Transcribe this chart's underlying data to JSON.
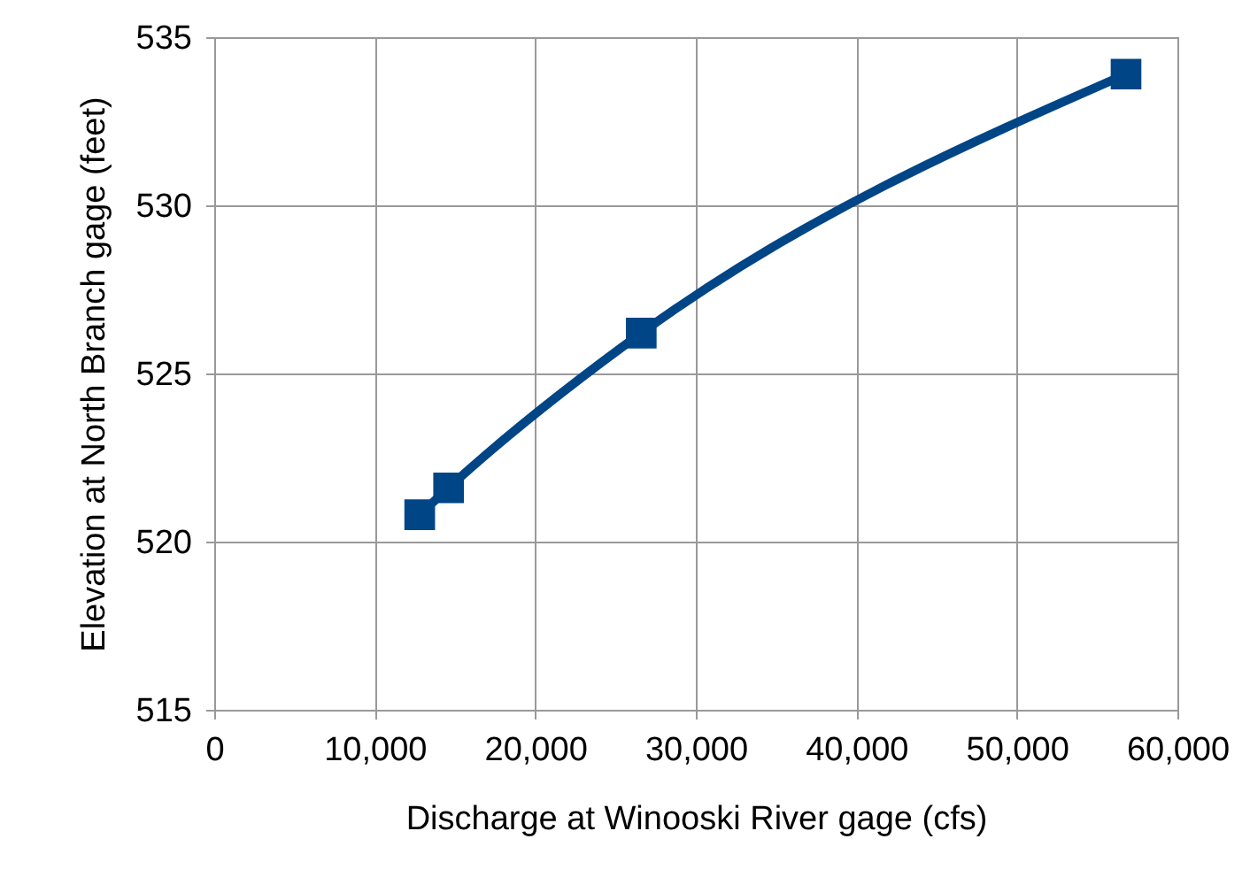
{
  "chart_data": {
    "type": "line",
    "xlabel": "Discharge at Winooski River gage (cfs)",
    "ylabel": "Elevation at North Branch gage (feet)",
    "x": [
      12800,
      14600,
      26600,
      56800
    ],
    "series": [
      {
        "color": "#004586",
        "values": [
          520.8,
          521.6,
          526.2,
          533.9
        ]
      }
    ],
    "xlim": [
      0,
      60000
    ],
    "xticks": [
      0,
      {
        "value": 10000,
        "label": "10,000"
      },
      {
        "value": 20000,
        "label": "20,000"
      },
      {
        "value": 30000,
        "label": "30,000"
      },
      {
        "value": 40000,
        "label": "40,000"
      },
      {
        "value": 50000,
        "label": "50,000"
      },
      {
        "value": 60000,
        "label": "60,000"
      }
    ],
    "ylim": [
      515,
      535
    ],
    "yticks": [
      515,
      520,
      525,
      530,
      535
    ],
    "grid": true,
    "marker": "square",
    "line_style": "solid"
  }
}
